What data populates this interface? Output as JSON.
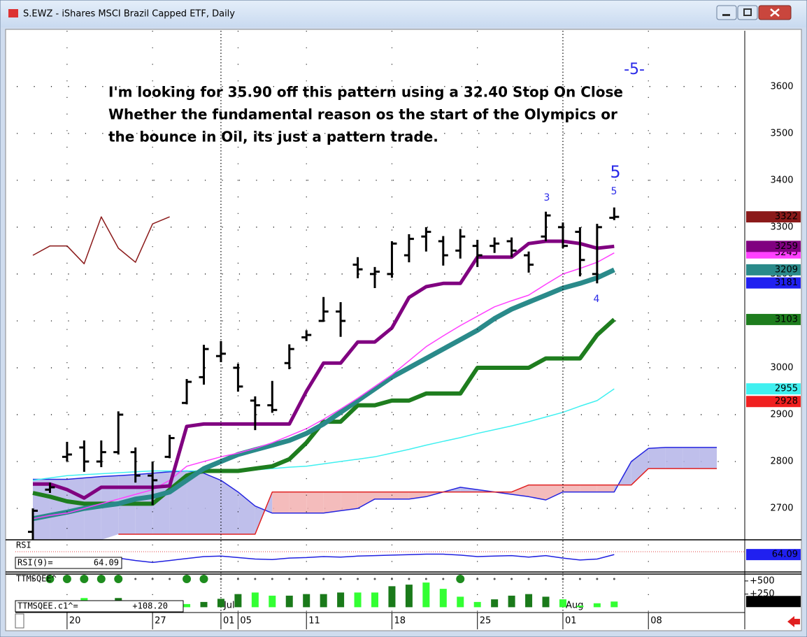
{
  "window": {
    "title": "S.EWZ - iShares MSCI Brazil Capped ETF, Daily"
  },
  "chart_data": {
    "type": "ohlc",
    "annotation": [
      "I'm looking for 35.90 off this pattern using a 32.40 Stop On Close",
      "Whether the fundamental reason os the start of the Olympics or",
      "the bounce in Oil, its just a pattern trade."
    ],
    "wave_labels": [
      "-5-",
      "5",
      "5",
      "3",
      "4"
    ],
    "categories": [
      null,
      null,
      "20",
      null,
      null,
      null,
      null,
      "27",
      null,
      null,
      null,
      "01",
      "05",
      null,
      null,
      null,
      "11",
      null,
      null,
      null,
      null,
      "18",
      null,
      null,
      null,
      null,
      "25",
      null,
      null,
      null,
      null,
      "01",
      null,
      null,
      null,
      null,
      "08",
      null,
      null,
      null,
      null
    ],
    "months": [
      null,
      null,
      null,
      null,
      null,
      null,
      null,
      null,
      null,
      null,
      null,
      "Jul",
      null,
      null,
      null,
      null,
      null,
      null,
      null,
      null,
      null,
      null,
      null,
      null,
      null,
      null,
      null,
      null,
      null,
      null,
      null,
      "Aug",
      null,
      null,
      null,
      null,
      null,
      null,
      null,
      null,
      null
    ],
    "ylim": [
      2633,
      3713
    ],
    "yticks": [
      2700,
      2800,
      2900,
      3000,
      3100,
      3200,
      3300,
      3400,
      3500,
      3600
    ],
    "grid": true,
    "ohlc": {
      "color": "#000000",
      "open": [
        2650,
        2740,
        2810,
        2830,
        2800,
        2820,
        2820,
        2770,
        2810,
        2925,
        2980,
        3025,
        3000,
        2930,
        2920,
        3010,
        3065,
        3100,
        3120,
        3220,
        3200,
        3200,
        3240,
        3280,
        3270,
        3250,
        3260,
        3260,
        3270,
        3240,
        3280,
        3300,
        3290,
        3200,
        3320,
        null,
        null,
        null,
        null,
        null,
        null
      ],
      "high": [
        2700,
        2755,
        2842,
        2845,
        2845,
        2907,
        2830,
        2800,
        2857,
        2976,
        3049,
        3057,
        3009,
        2939,
        2972,
        3050,
        3080,
        3151,
        3140,
        3236,
        3215,
        3270,
        3285,
        3300,
        3281,
        3296,
        3273,
        3278,
        3278,
        3248,
        3333,
        3310,
        3300,
        3307,
        3342,
        null,
        null,
        null,
        null,
        null,
        null
      ],
      "low": [
        2633,
        2733,
        2800,
        2778,
        2788,
        2815,
        2755,
        2707,
        2807,
        2922,
        2964,
        3012,
        2949,
        2867,
        2904,
        2997,
        3057,
        3098,
        3066,
        3191,
        3170,
        3192,
        3225,
        3248,
        3218,
        3233,
        3215,
        3245,
        3236,
        3203,
        3270,
        3255,
        3195,
        3180,
        3315,
        null,
        null,
        null,
        null,
        null,
        null
      ],
      "close": [
        2695,
        2745,
        2815,
        2800,
        2820,
        2900,
        2770,
        2760,
        2850,
        2970,
        3040,
        3030,
        2960,
        2920,
        2910,
        3040,
        3070,
        3120,
        3100,
        3210,
        3205,
        3265,
        3275,
        3290,
        3240,
        3280,
        3240,
        3265,
        3250,
        3220,
        3325,
        3260,
        3230,
        3300,
        3322,
        null,
        null,
        null,
        null,
        null,
        null
      ]
    },
    "cloud": {
      "upper": {
        "color": "#2424e0",
        "values": [
          2762,
          2762,
          2762,
          2765,
          2768,
          2770,
          2772,
          2775,
          2778,
          2780,
          2775,
          2760,
          2735,
          2705,
          2690,
          2690,
          2690,
          2690,
          2695,
          2700,
          2720,
          2720,
          2720,
          2725,
          2735,
          2745,
          2740,
          2735,
          2730,
          2725,
          2718,
          2735,
          2735,
          2735,
          2735,
          2800,
          2828,
          2830,
          2830,
          2830,
          2830
        ]
      },
      "lower": {
        "color": "#e02020",
        "values": [
          null,
          null,
          null,
          null,
          null,
          2645,
          2645,
          2645,
          2645,
          2645,
          2645,
          2645,
          2645,
          2645,
          2735,
          2735,
          2735,
          2735,
          2735,
          2735,
          2735,
          2735,
          2735,
          2735,
          2735,
          2735,
          2735,
          2735,
          2735,
          2750,
          2750,
          2750,
          2750,
          2750,
          2750,
          2750,
          2785,
          2785,
          2785,
          2785,
          2785
        ]
      },
      "fill_up": "#b4b4e8",
      "fill_down": "#f2b0b0"
    },
    "lines": [
      {
        "color": "#40f0f0",
        "width": 1.5,
        "values": [
          2760,
          2765,
          2770,
          2772,
          2774,
          2776,
          2778,
          2780,
          2780,
          2780,
          2780,
          2780,
          2780,
          2782,
          2785,
          2788,
          2790,
          2795,
          2800,
          2805,
          2810,
          2818,
          2826,
          2835,
          2843,
          2851,
          2860,
          2868,
          2876,
          2885,
          2895,
          2905,
          2918,
          2930,
          2955,
          null,
          null,
          null,
          null,
          null,
          null
        ]
      },
      {
        "color": "#1e7d1e",
        "width": 6,
        "values": [
          2733,
          2725,
          2715,
          2710,
          2710,
          2710,
          2710,
          2710,
          2740,
          2770,
          2780,
          2780,
          2780,
          2785,
          2790,
          2805,
          2840,
          2885,
          2885,
          2920,
          2920,
          2930,
          2930,
          2945,
          2945,
          2945,
          3000,
          3000,
          3000,
          3000,
          3020,
          3020,
          3020,
          3070,
          3103,
          null,
          null,
          null,
          null,
          null,
          null
        ]
      },
      {
        "color": "#2a8a8a",
        "width": 7,
        "values": [
          2678,
          2685,
          2692,
          2700,
          2705,
          2710,
          2720,
          2725,
          2735,
          2760,
          2785,
          2800,
          2815,
          2825,
          2835,
          2845,
          2860,
          2880,
          2905,
          2930,
          2955,
          2980,
          3000,
          3020,
          3040,
          3060,
          3080,
          3105,
          3125,
          3140,
          3155,
          3170,
          3180,
          3192,
          3209,
          null,
          null,
          null,
          null,
          null,
          null
        ]
      },
      {
        "color": "#ff40ff",
        "width": 1.5,
        "values": [
          2678,
          2685,
          2690,
          2700,
          2710,
          2720,
          2730,
          2740,
          2760,
          2790,
          2800,
          2810,
          2818,
          2828,
          2840,
          2855,
          2870,
          2890,
          2912,
          2935,
          2960,
          2985,
          3015,
          3045,
          3068,
          3090,
          3110,
          3130,
          3143,
          3155,
          3178,
          3200,
          3212,
          3225,
          3245,
          null,
          null,
          null,
          null,
          null,
          null
        ]
      },
      {
        "color": "#800080",
        "width": 5,
        "values": [
          2752,
          2752,
          2740,
          2722,
          2745,
          2745,
          2745,
          2745,
          2748,
          2875,
          2880,
          2880,
          2880,
          2880,
          2880,
          2880,
          2950,
          3010,
          3010,
          3055,
          3055,
          3085,
          3150,
          3173,
          3180,
          3180,
          3236,
          3236,
          3236,
          3265,
          3270,
          3270,
          3265,
          3255,
          3259,
          null,
          null,
          null,
          null,
          null,
          null
        ]
      },
      {
        "color": "#8b1a1a",
        "width": 1.5,
        "values": [
          3240,
          3260,
          3260,
          3222,
          3322,
          3255,
          3225,
          3307,
          3322,
          null,
          null,
          null,
          null,
          null,
          null,
          null,
          null,
          null,
          null,
          null,
          null,
          null,
          null,
          null,
          null,
          null,
          null,
          null,
          null,
          null,
          null,
          null,
          null,
          null,
          null,
          null,
          null,
          null,
          null,
          null,
          null
        ]
      }
    ],
    "last_values": [
      {
        "value": 3322,
        "color": "#8b1a1a",
        "text_color": "#ffffff"
      },
      {
        "value": 3245,
        "color": "#ff40ff",
        "text_color": "#ffffff"
      },
      {
        "value": 3259,
        "color": "#800080",
        "text_color": "#ffffff"
      },
      {
        "value": 3209,
        "color": "#2a8a8a",
        "text_color": "#ffffff"
      },
      {
        "value": 3181,
        "color": "#2020f0",
        "text_color": "#ffffff"
      },
      {
        "value": 3103,
        "color": "#1e7d1e",
        "text_color": "#ffffff"
      },
      {
        "value": 2955,
        "color": "#40f0f0",
        "text_color": "#000000"
      },
      {
        "value": 2928,
        "color": "#f02020",
        "text_color": "#ffffff"
      }
    ],
    "rsi": {
      "title": "RSI",
      "label": "RSI(9)=",
      "color": "#2020e0",
      "box_color": "#2020f0",
      "ylim": [
        30,
        90
      ],
      "level": 70,
      "values": [
        58,
        57,
        55,
        56,
        55,
        57,
        52,
        48,
        52,
        56,
        60,
        61,
        58,
        55,
        54,
        57,
        58,
        60,
        59,
        61,
        62,
        63,
        64,
        65,
        65,
        63,
        60,
        61,
        62,
        59,
        62,
        57,
        53,
        55,
        64.09,
        null,
        null,
        null,
        null,
        null,
        null
      ]
    },
    "squeeze": {
      "title": "TTMSQEE^",
      "readout": "TTMSQEE.c1^=",
      "readout_value": "+108.20",
      "last_label": "+108.2",
      "ylim": [
        -88,
        618
      ],
      "yticks": [
        {
          "value": 500,
          "label": "+500"
        },
        {
          "value": 250,
          "label": "+250"
        }
      ],
      "values": [
        40,
        60,
        100,
        175,
        130,
        175,
        100,
        60,
        20,
        60,
        100,
        160,
        250,
        280,
        220,
        220,
        250,
        250,
        280,
        280,
        280,
        400,
        430,
        470,
        350,
        200,
        100,
        150,
        220,
        250,
        200,
        150,
        30,
        75,
        108.2,
        null,
        null,
        null,
        null,
        null,
        null
      ],
      "colors": [
        "#1a7a1a",
        "#1a7a1a",
        "#1a7a1a",
        "#33ff33",
        "#33ff33",
        "#1a7a1a",
        "#1a7a1a",
        "#1a7a1a",
        "#33ff33",
        "#33ff33",
        "#1a7a1a",
        "#1a7a1a",
        "#1a7a1a",
        "#33ff33",
        "#33ff33",
        "#1a7a1a",
        "#1a7a1a",
        "#1a7a1a",
        "#1a7a1a",
        "#33ff33",
        "#33ff33",
        "#1a7a1a",
        "#1a7a1a",
        "#33ff33",
        "#33ff33",
        "#33ff33",
        "#33ff33",
        "#1a7a1a",
        "#1a7a1a",
        "#1a7a1a",
        "#1a7a1a",
        "#33ff33",
        "#33ff33",
        "#33ff33",
        "#33ff33",
        null,
        null,
        null,
        null,
        null,
        null
      ],
      "dots": [
        "#555555",
        "#1e8c1e",
        "#1e8c1e",
        "#1e8c1e",
        "#1e8c1e",
        "#1e8c1e",
        "#555555",
        "#555555",
        "#555555",
        "#1e8c1e",
        "#1e8c1e",
        "#555555",
        "#555555",
        "#555555",
        "#555555",
        "#555555",
        "#555555",
        "#555555",
        "#555555",
        "#555555",
        "#555555",
        "#555555",
        "#555555",
        "#555555",
        "#555555",
        "#1e8c1e",
        "#555555",
        "#555555",
        "#555555",
        "#555555",
        "#555555",
        "#555555",
        "#555555",
        "#555555",
        "#555555",
        null,
        null,
        null,
        null,
        null,
        null
      ]
    }
  }
}
